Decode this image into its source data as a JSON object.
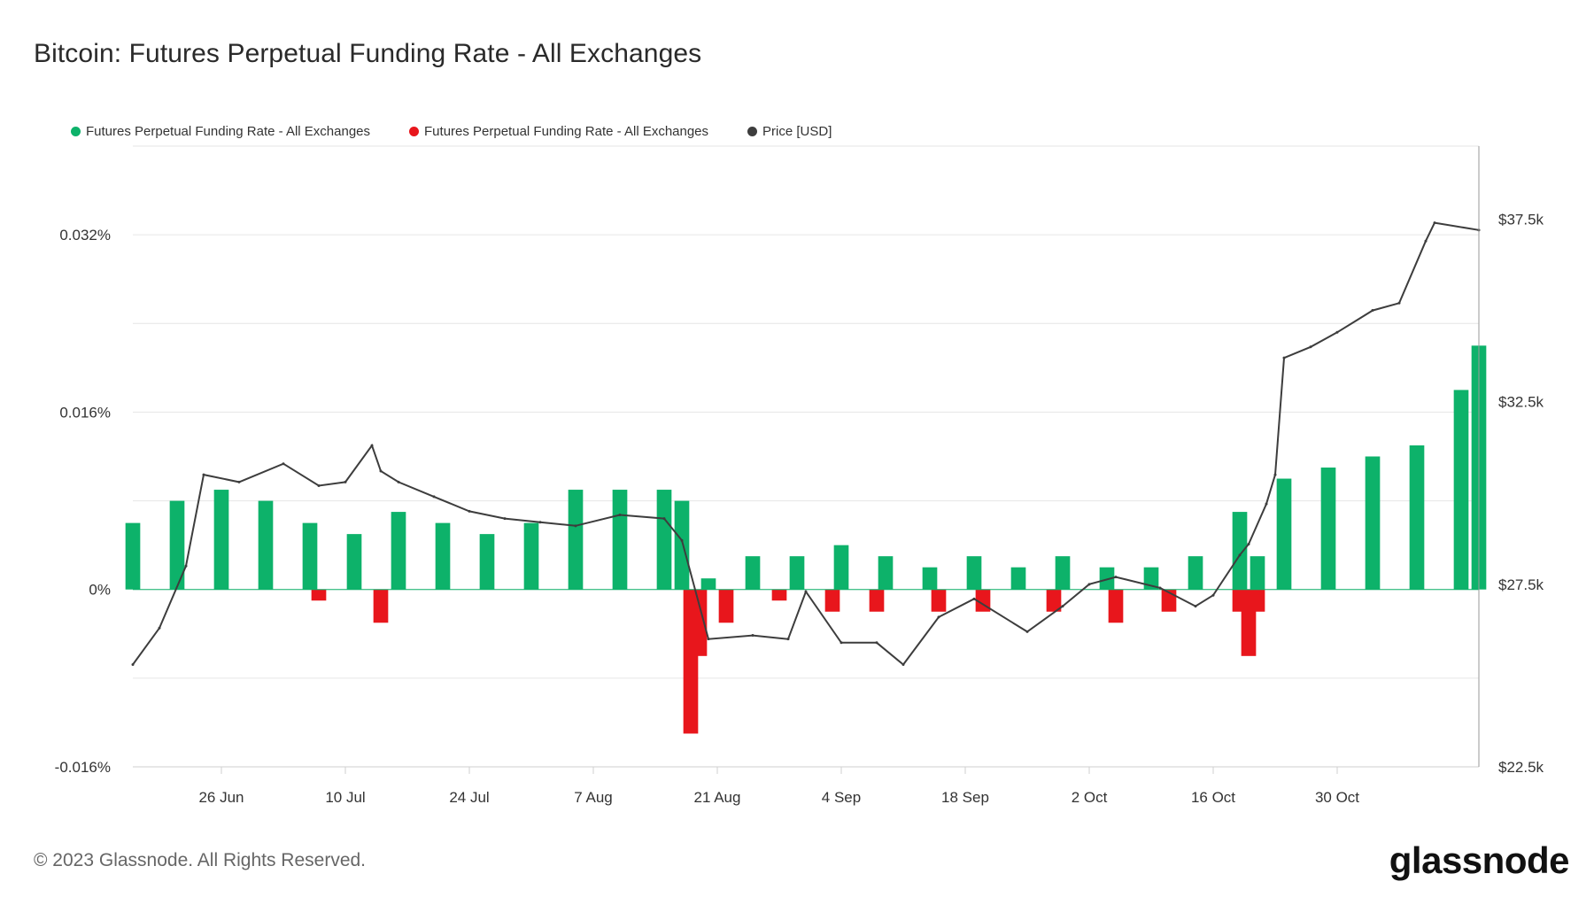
{
  "title": "Bitcoin: Futures Perpetual Funding Rate - All Exchanges",
  "legend": [
    {
      "label": "Futures Perpetual Funding Rate - All Exchanges",
      "color": "#0db26a"
    },
    {
      "label": "Futures Perpetual Funding Rate - All Exchanges",
      "color": "#e8161c"
    },
    {
      "label": "Price [USD]",
      "color": "#3d3d3d"
    }
  ],
  "footer": "© 2023 Glassnode. All Rights Reserved.",
  "logo": "glassnode",
  "chart_data": {
    "type": "bar",
    "x_range": [
      "2023-06-16",
      "2023-11-15"
    ],
    "x_ticks": [
      "26 Jun",
      "10 Jul",
      "24 Jul",
      "7 Aug",
      "21 Aug",
      "4 Sep",
      "18 Sep",
      "2 Oct",
      "16 Oct",
      "30 Oct"
    ],
    "y_left": {
      "unit": "%",
      "range": [
        -0.016,
        0.04
      ],
      "ticks": [
        -0.016,
        0,
        0.016,
        0.032
      ],
      "tick_labels": [
        "-0.016%",
        "0%",
        "0.016%",
        "0.032%"
      ]
    },
    "y_right": {
      "unit": "USD",
      "range": [
        22500,
        39500
      ],
      "ticks": [
        22500,
        27500,
        32500,
        37500
      ],
      "tick_labels": [
        "$22.5k",
        "$27.5k",
        "$32.5k",
        "$37.5k"
      ]
    },
    "grid": true,
    "legend_position": "top-left",
    "series": [
      {
        "name": "Futures Perpetual Funding Rate - All Exchanges",
        "axis": "left",
        "color": "#0db26a",
        "x": [
          "2023-06-16",
          "2023-06-21",
          "2023-06-26",
          "2023-07-01",
          "2023-07-06",
          "2023-07-11",
          "2023-07-16",
          "2023-07-21",
          "2023-07-26",
          "2023-07-31",
          "2023-08-05",
          "2023-08-10",
          "2023-08-15",
          "2023-08-17",
          "2023-08-20",
          "2023-08-25",
          "2023-08-30",
          "2023-09-04",
          "2023-09-09",
          "2023-09-14",
          "2023-09-19",
          "2023-09-24",
          "2023-09-29",
          "2023-10-04",
          "2023-10-09",
          "2023-10-14",
          "2023-10-19",
          "2023-10-21",
          "2023-10-24",
          "2023-10-29",
          "2023-11-03",
          "2023-11-08",
          "2023-11-13",
          "2023-11-15"
        ],
        "values": [
          0.006,
          0.008,
          0.009,
          0.008,
          0.006,
          0.005,
          0.007,
          0.006,
          0.005,
          0.006,
          0.009,
          0.009,
          0.009,
          0.008,
          0.001,
          0.003,
          0.003,
          0.004,
          0.003,
          0.002,
          0.003,
          0.002,
          0.003,
          0.002,
          0.002,
          0.003,
          0.007,
          0.003,
          0.01,
          0.011,
          0.012,
          0.013,
          0.018,
          0.022
        ]
      },
      {
        "name": "Futures Perpetual Funding Rate - All Exchanges",
        "axis": "left",
        "color": "#e8161c",
        "x": [
          "2023-07-07",
          "2023-07-14",
          "2023-08-18",
          "2023-08-19",
          "2023-08-22",
          "2023-08-28",
          "2023-09-03",
          "2023-09-08",
          "2023-09-15",
          "2023-09-20",
          "2023-09-28",
          "2023-10-05",
          "2023-10-11",
          "2023-10-19",
          "2023-10-20",
          "2023-10-21"
        ],
        "values": [
          -0.001,
          -0.003,
          -0.013,
          -0.006,
          -0.003,
          -0.001,
          -0.002,
          -0.002,
          -0.002,
          -0.002,
          -0.002,
          -0.003,
          -0.002,
          -0.002,
          -0.006,
          -0.002
        ]
      },
      {
        "name": "Price [USD]",
        "axis": "right",
        "color": "#3d3d3d",
        "x": [
          "2023-06-16",
          "2023-06-19",
          "2023-06-22",
          "2023-06-24",
          "2023-06-28",
          "2023-07-03",
          "2023-07-07",
          "2023-07-10",
          "2023-07-13",
          "2023-07-14",
          "2023-07-16",
          "2023-07-20",
          "2023-07-24",
          "2023-07-28",
          "2023-08-01",
          "2023-08-05",
          "2023-08-10",
          "2023-08-15",
          "2023-08-17",
          "2023-08-20",
          "2023-08-25",
          "2023-08-29",
          "2023-08-31",
          "2023-09-04",
          "2023-09-08",
          "2023-09-11",
          "2023-09-15",
          "2023-09-19",
          "2023-09-25",
          "2023-09-29",
          "2023-10-02",
          "2023-10-05",
          "2023-10-10",
          "2023-10-14",
          "2023-10-16",
          "2023-10-19",
          "2023-10-20",
          "2023-10-22",
          "2023-10-23",
          "2023-10-24",
          "2023-10-27",
          "2023-10-30",
          "2023-11-03",
          "2023-11-06",
          "2023-11-09",
          "2023-11-10",
          "2023-11-15"
        ],
        "values": [
          25300,
          26300,
          28000,
          30500,
          30300,
          30800,
          30200,
          30300,
          31300,
          30600,
          30300,
          29900,
          29500,
          29300,
          29200,
          29100,
          29400,
          29300,
          28700,
          26000,
          26100,
          26000,
          27300,
          25900,
          25900,
          25300,
          26600,
          27100,
          26200,
          26900,
          27500,
          27700,
          27400,
          26900,
          27200,
          28300,
          28600,
          29700,
          30500,
          33700,
          34000,
          34400,
          35000,
          35200,
          36900,
          37400,
          37200
        ]
      }
    ]
  }
}
